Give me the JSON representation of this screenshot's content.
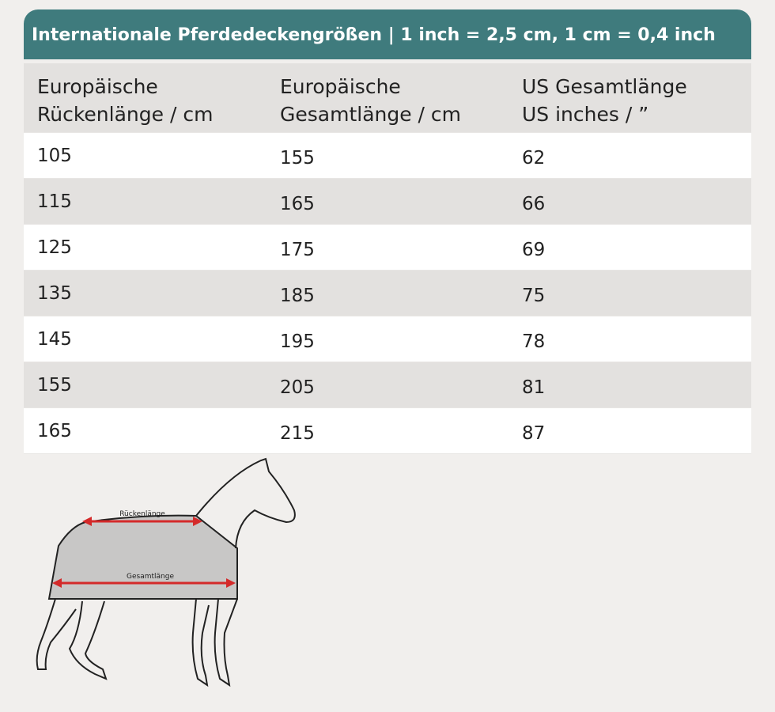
{
  "title": "Internationale Pferdedeckengrößen | 1 inch = 2,5 cm, 1 cm = 0,4 inch",
  "table": {
    "headers": [
      [
        "Europäische",
        "Rückenlänge / cm"
      ],
      [
        "Europäische",
        "Gesamtlänge / cm"
      ],
      [
        "US Gesamtlänge",
        "US inches / ”"
      ]
    ],
    "rows": [
      [
        105,
        155,
        62
      ],
      [
        115,
        165,
        66
      ],
      [
        125,
        175,
        69
      ],
      [
        135,
        185,
        75
      ],
      [
        145,
        195,
        78
      ],
      [
        155,
        205,
        81
      ],
      [
        165,
        215,
        87
      ]
    ]
  },
  "diagram": {
    "back_length_label": "Rückenlänge",
    "total_length_label": "Gesamtlänge"
  }
}
